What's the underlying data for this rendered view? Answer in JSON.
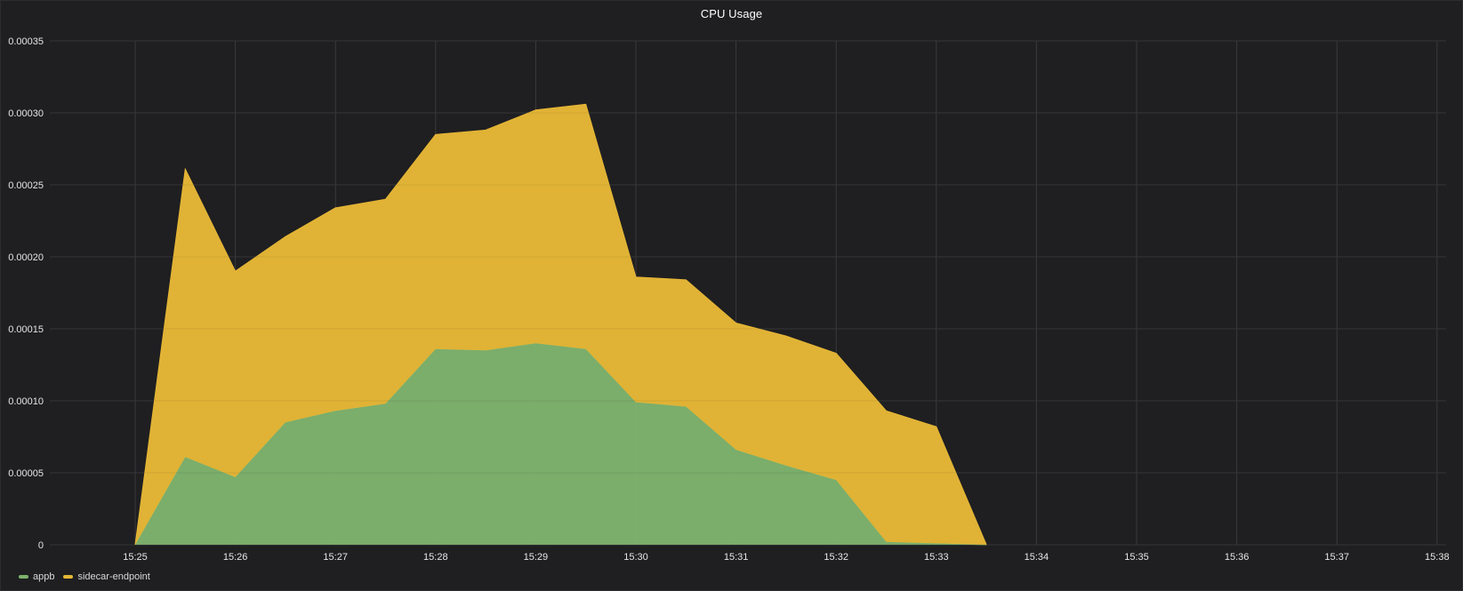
{
  "panel": {
    "title": "CPU Usage"
  },
  "colors": {
    "background": "#1f1f21",
    "grid": "#3a3a3d",
    "appb": "#7eb26d",
    "sidecar-endpoint": "#e6b736"
  },
  "chart_data": {
    "type": "area",
    "stacked": true,
    "title": "CPU Usage",
    "xlabel": "",
    "ylabel": "",
    "ylim": [
      0,
      0.00035
    ],
    "yticks": [
      "0",
      "0.00005",
      "0.00010",
      "0.00015",
      "0.00020",
      "0.00025",
      "0.00030",
      "0.00035"
    ],
    "xticks": [
      "15:25",
      "15:26",
      "15:27",
      "15:28",
      "15:29",
      "15:30",
      "15:31",
      "15:32",
      "15:33",
      "15:34",
      "15:35",
      "15:36",
      "15:37",
      "15:38"
    ],
    "x": [
      "15:25:00",
      "15:25:30",
      "15:26:00",
      "15:26:30",
      "15:27:00",
      "15:27:30",
      "15:28:00",
      "15:28:30",
      "15:29:00",
      "15:29:30",
      "15:30:00",
      "15:30:30",
      "15:31:00",
      "15:31:30",
      "15:32:00",
      "15:32:30",
      "15:33:00",
      "15:33:30"
    ],
    "series": [
      {
        "name": "appb",
        "color": "#7eb26d",
        "values": [
          0,
          6.1e-05,
          4.7e-05,
          8.5e-05,
          9.3e-05,
          9.8e-05,
          0.000136,
          0.000135,
          0.00014,
          0.000136,
          9.9e-05,
          9.6e-05,
          6.6e-05,
          5.5e-05,
          4.5e-05,
          2e-06,
          1e-06,
          0
        ]
      },
      {
        "name": "sidecar-endpoint",
        "color": "#e6b736",
        "values": [
          0,
          0.0002,
          0.000143,
          0.000129,
          0.000141,
          0.000142,
          0.000149,
          0.000153,
          0.000162,
          0.00017,
          8.7e-05,
          8.8e-05,
          8.8e-05,
          9e-05,
          8.8e-05,
          9.1e-05,
          8.1e-05,
          0
        ]
      }
    ],
    "grid": true,
    "legend": "bottom-left"
  },
  "legend": {
    "items": [
      {
        "label": "appb",
        "color": "#7eb26d"
      },
      {
        "label": "sidecar-endpoint",
        "color": "#e6b736"
      }
    ]
  }
}
